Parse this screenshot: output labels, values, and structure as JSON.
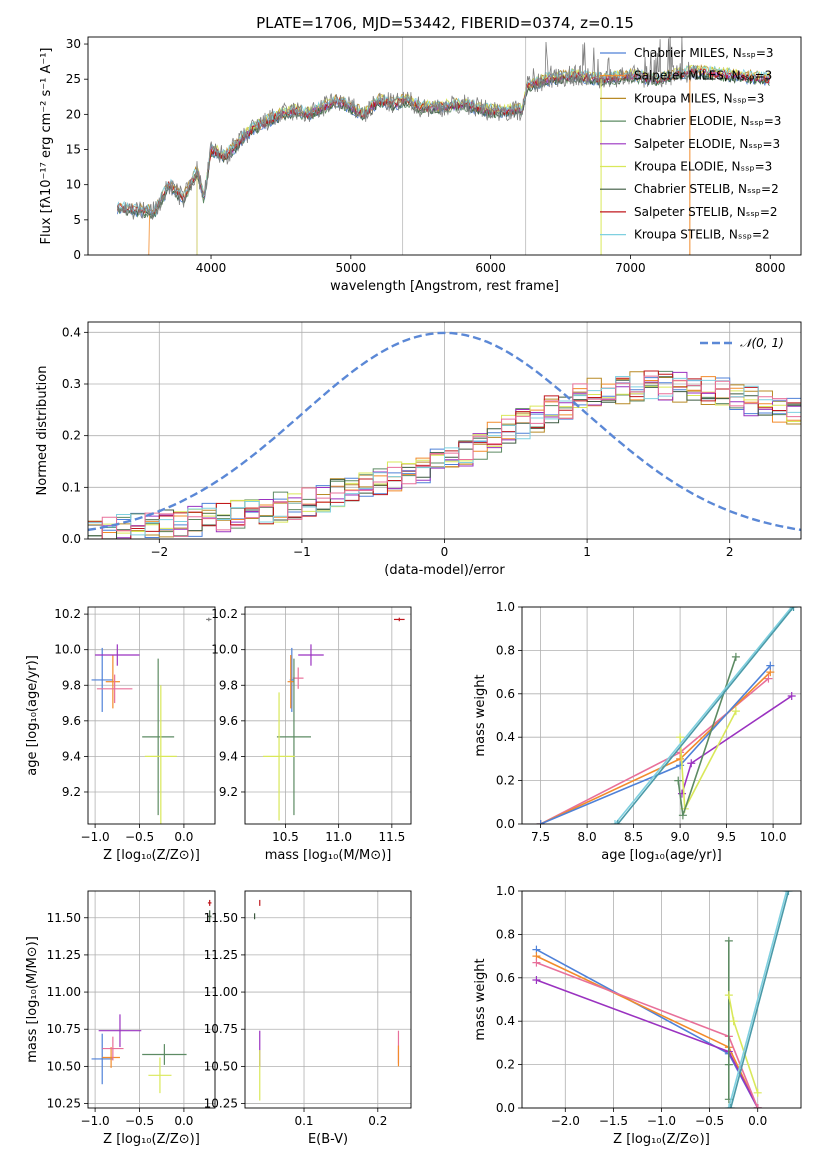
{
  "figure": {
    "suptitle": "PLATE=1706, MJD=53442, FIBERID=0374, z=0.15"
  },
  "colors": {
    "chabrier_miles": "#4f81d8",
    "salpeter_miles": "#f28b2b",
    "kroupa_miles": "#b88a26",
    "chabrier_elodie": "#5d8b63",
    "salpeter_elodie": "#9a32c0",
    "kroupa_elodie": "#d9e85a",
    "chabrier_stelib": "#3d5a40",
    "salpeter_stelib": "#c0181e",
    "kroupa_stelib": "#7fd0e0",
    "data": "#808080",
    "normal": "#5b88d6",
    "pink": "#e8709a"
  },
  "chart_data": [
    {
      "id": "spectrum",
      "type": "line",
      "xlabel": "wavelength [Angstrom, rest frame]",
      "ylabel": "Flux [fλ10⁻¹⁷ erg cm⁻² s⁻¹ A⁻¹]",
      "xlim": [
        3120,
        8220
      ],
      "ylim": [
        0,
        31
      ],
      "xticks": [
        4000,
        5000,
        6000,
        7000,
        8000
      ],
      "yticks": [
        0,
        5,
        10,
        15,
        20,
        25,
        30
      ],
      "legend": [
        {
          "label": "Chabrier MILES, Nₛₛₚ=3",
          "color": "#4f81d8"
        },
        {
          "label": "Salpeter MILES, Nₛₛₚ=3",
          "color": "#f28b2b"
        },
        {
          "label": "Kroupa MILES, Nₛₛₚ=3",
          "color": "#b88a26"
        },
        {
          "label": "Chabrier ELODIE, Nₛₛₚ=3",
          "color": "#5d8b63"
        },
        {
          "label": "Salpeter ELODIE, Nₛₛₚ=3",
          "color": "#9a32c0"
        },
        {
          "label": "Kroupa ELODIE, Nₛₛₚ=3",
          "color": "#d9e85a"
        },
        {
          "label": "Chabrier STELIB, Nₛₛₚ=2",
          "color": "#3d5a40"
        },
        {
          "label": "Salpeter STELIB, Nₛₛₚ=2",
          "color": "#c0181e"
        },
        {
          "label": "Kroupa STELIB, Nₛₛₚ=2",
          "color": "#7fd0e0"
        }
      ],
      "continuum": [
        [
          3330,
          6.8
        ],
        [
          3450,
          6.4
        ],
        [
          3600,
          6.2
        ],
        [
          3700,
          10
        ],
        [
          3800,
          8
        ],
        [
          3900,
          12
        ],
        [
          3950,
          8
        ],
        [
          4000,
          15
        ],
        [
          4100,
          14
        ],
        [
          4200,
          16
        ],
        [
          4300,
          18
        ],
        [
          4400,
          19
        ],
        [
          4500,
          20
        ],
        [
          4600,
          20.5
        ],
        [
          4700,
          20
        ],
        [
          4800,
          21
        ],
        [
          4900,
          22
        ],
        [
          5000,
          21
        ],
        [
          5100,
          20
        ],
        [
          5200,
          22
        ],
        [
          5300,
          21.5
        ],
        [
          5400,
          22
        ],
        [
          5500,
          21
        ],
        [
          5600,
          21
        ],
        [
          5700,
          21.2
        ],
        [
          5800,
          21.5
        ],
        [
          5900,
          21
        ],
        [
          6000,
          20.5
        ],
        [
          6100,
          20.5
        ],
        [
          6230,
          20.6
        ],
        [
          6260,
          24
        ],
        [
          6400,
          25
        ],
        [
          6600,
          25.5
        ],
        [
          6800,
          25
        ],
        [
          7000,
          25.5
        ],
        [
          7200,
          25
        ],
        [
          7400,
          26
        ],
        [
          7500,
          26
        ]
      ],
      "data_peaks": [
        [
          6300,
          26
        ],
        [
          6420,
          31
        ],
        [
          6600,
          31
        ],
        [
          6700,
          30
        ],
        [
          7020,
          31
        ],
        [
          7300,
          31
        ]
      ],
      "vertical_lines": [
        5370,
        6250
      ]
    },
    {
      "id": "residuals",
      "type": "line",
      "xlabel": "(data-model)/error",
      "ylabel": "Normed distribution",
      "xlim": [
        -2.5,
        2.5
      ],
      "ylim": [
        0,
        0.42
      ],
      "xticks": [
        -2,
        -1,
        0,
        1,
        2
      ],
      "yticks": [
        0.0,
        0.1,
        0.2,
        0.3,
        0.4
      ],
      "legend": [
        {
          "label": "𝒩(0, 1)",
          "color": "#5b88d6"
        }
      ],
      "bin_width": 0.1,
      "hist_envelope": [
        [
          -2.5,
          0.015
        ],
        [
          -2.0,
          0.025
        ],
        [
          -1.5,
          0.045
        ],
        [
          -1.0,
          0.07
        ],
        [
          -0.5,
          0.11
        ],
        [
          0.0,
          0.15
        ],
        [
          0.3,
          0.19
        ],
        [
          0.6,
          0.23
        ],
        [
          1.0,
          0.28
        ],
        [
          1.5,
          0.3
        ],
        [
          2.0,
          0.28
        ],
        [
          2.5,
          0.24
        ]
      ]
    },
    {
      "id": "age_vs_Z",
      "type": "scatter",
      "xlabel": "Z [log₁₀(Z/Z⊙)]",
      "ylabel": "age  [log₁₀(age/yr)]",
      "xlim": [
        -1.08,
        0.35
      ],
      "ylim": [
        9.02,
        10.24
      ],
      "xticks": [
        -1.0,
        -0.5,
        0.0
      ],
      "yticks": [
        9.2,
        9.4,
        9.6,
        9.8,
        10.0,
        10.2
      ],
      "points": [
        {
          "x": -0.92,
          "y": 9.83,
          "xerr": 0.12,
          "yerr": 0.18,
          "color": "#4f81d8"
        },
        {
          "x": -0.8,
          "y": 9.82,
          "xerr": 0.08,
          "yerr": 0.15,
          "color": "#f28b2b"
        },
        {
          "x": -0.75,
          "y": 9.97,
          "xerr": 0.25,
          "yerr": 0.06,
          "color": "#9a32c0"
        },
        {
          "x": -0.78,
          "y": 9.78,
          "xerr": 0.2,
          "yerr": 0.08,
          "color": "#e8709a"
        },
        {
          "x": -0.29,
          "y": 9.51,
          "xerr": 0.18,
          "yerr": 0.44,
          "color": "#5d8b63"
        },
        {
          "x": -0.26,
          "y": 9.4,
          "xerr": 0.18,
          "yerr": 0.4,
          "color": "#d9e85a"
        },
        {
          "x": 0.28,
          "y": 10.17,
          "xerr": 0.03,
          "yerr": 0.01,
          "color": "#808080"
        }
      ]
    },
    {
      "id": "age_vs_mass",
      "type": "scatter",
      "xlabel": "mass [log₁₀(M/M⊙)]",
      "ylabel": "",
      "xlim": [
        10.12,
        11.68
      ],
      "ylim": [
        9.02,
        10.24
      ],
      "xticks": [
        10.5,
        11.0,
        11.5
      ],
      "yticks": [
        9.2,
        9.4,
        9.6,
        9.8,
        10.0,
        10.2
      ],
      "points": [
        {
          "x": 10.56,
          "y": 9.83,
          "xerr": 0.02,
          "yerr": 0.18,
          "color": "#4f81d8"
        },
        {
          "x": 10.55,
          "y": 9.82,
          "xerr": 0.03,
          "yerr": 0.15,
          "color": "#f28b2b"
        },
        {
          "x": 10.74,
          "y": 9.97,
          "xerr": 0.12,
          "yerr": 0.06,
          "color": "#9a32c0"
        },
        {
          "x": 10.62,
          "y": 9.84,
          "xerr": 0.05,
          "yerr": 0.06,
          "color": "#e8709a"
        },
        {
          "x": 10.58,
          "y": 9.51,
          "xerr": 0.16,
          "yerr": 0.44,
          "color": "#5d8b63"
        },
        {
          "x": 10.44,
          "y": 9.4,
          "xerr": 0.15,
          "yerr": 0.36,
          "color": "#d9e85a"
        },
        {
          "x": 11.57,
          "y": 10.17,
          "xerr": 0.05,
          "yerr": 0.01,
          "color": "#c0181e"
        }
      ]
    },
    {
      "id": "weight_vs_age",
      "type": "line",
      "xlabel": "age  [log₁₀(age/yr)]",
      "ylabel": "mass weight",
      "xlim": [
        7.3,
        10.3
      ],
      "ylim": [
        0,
        1
      ],
      "xticks": [
        7.5,
        8.0,
        8.5,
        9.0,
        9.5,
        10.0
      ],
      "yticks": [
        0.0,
        0.2,
        0.4,
        0.6,
        0.8,
        1.0
      ],
      "series": [
        {
          "color": "#e8709a",
          "x": [
            7.5,
            9.0,
            9.95
          ],
          "y": [
            0.0,
            0.33,
            0.67
          ]
        },
        {
          "color": "#f28b2b",
          "x": [
            7.5,
            9.0,
            9.97
          ],
          "y": [
            0.0,
            0.3,
            0.7
          ]
        },
        {
          "color": "#4f81d8",
          "x": [
            7.5,
            9.0,
            9.97
          ],
          "y": [
            0.0,
            0.27,
            0.73
          ]
        },
        {
          "color": "#9a32c0",
          "x": [
            9.02,
            9.12,
            10.2
          ],
          "y": [
            0.14,
            0.28,
            0.59
          ]
        },
        {
          "color": "#d9e85a",
          "x": [
            9.0,
            9.05,
            9.6
          ],
          "y": [
            0.4,
            0.07,
            0.52
          ]
        },
        {
          "color": "#5d8b63",
          "x": [
            8.98,
            9.03,
            9.6
          ],
          "y": [
            0.2,
            0.04,
            0.77
          ]
        },
        {
          "color": "#7fd0e0",
          "x": [
            8.3,
            10.2
          ],
          "y": [
            0.0,
            1.0
          ]
        },
        {
          "color": "#4a9aa8",
          "x": [
            8.33,
            10.22
          ],
          "y": [
            0.0,
            1.0
          ]
        }
      ]
    },
    {
      "id": "mass_vs_Z",
      "type": "scatter",
      "xlabel": "Z [log₁₀(Z/Z⊙)]",
      "ylabel": "mass [log₁₀(M/M⊙)]",
      "xlim": [
        -1.08,
        0.35
      ],
      "ylim": [
        10.22,
        11.68
      ],
      "xticks": [
        -1.0,
        -0.5,
        0.0
      ],
      "yticks": [
        10.25,
        10.5,
        10.75,
        11.0,
        11.25,
        11.5
      ],
      "points": [
        {
          "x": -0.92,
          "y": 10.55,
          "xerr": 0.12,
          "yerr": 0.17,
          "color": "#4f81d8"
        },
        {
          "x": -0.82,
          "y": 10.56,
          "xerr": 0.1,
          "yerr": 0.07,
          "color": "#f28b2b"
        },
        {
          "x": -0.72,
          "y": 10.74,
          "xerr": 0.24,
          "yerr": 0.11,
          "color": "#9a32c0"
        },
        {
          "x": -0.8,
          "y": 10.62,
          "xerr": 0.12,
          "yerr": 0.08,
          "color": "#e8709a"
        },
        {
          "x": -0.22,
          "y": 10.58,
          "xerr": 0.25,
          "yerr": 0.07,
          "color": "#5d8b63"
        },
        {
          "x": -0.27,
          "y": 10.44,
          "xerr": 0.13,
          "yerr": 0.12,
          "color": "#d9e85a"
        },
        {
          "x": 0.29,
          "y": 11.6,
          "xerr": 0.02,
          "yerr": 0.02,
          "color": "#c0181e"
        },
        {
          "x": 0.29,
          "y": 11.51,
          "xerr": 0.02,
          "yerr": 0.04,
          "color": "#3d5a40"
        }
      ]
    },
    {
      "id": "mass_vs_ebv",
      "type": "scatter",
      "xlabel": "E(B-V)",
      "ylabel": "",
      "xlim": [
        0.02,
        0.245
      ],
      "ylim": [
        10.22,
        11.68
      ],
      "xticks": [
        0.1,
        0.2
      ],
      "yticks": [
        10.25,
        10.5,
        10.75,
        11.0,
        11.25,
        11.5
      ],
      "points": [
        {
          "x": 0.04,
          "y": 10.62,
          "xerr": 0,
          "yerr": 0.12,
          "color": "#9a32c0"
        },
        {
          "x": 0.04,
          "y": 10.44,
          "xerr": 0,
          "yerr": 0.17,
          "color": "#d9e85a"
        },
        {
          "x": 0.228,
          "y": 10.63,
          "xerr": 0,
          "yerr": 0.11,
          "color": "#e8709a"
        },
        {
          "x": 0.228,
          "y": 10.57,
          "xerr": 0,
          "yerr": 0.07,
          "color": "#f28b2b"
        },
        {
          "x": 0.04,
          "y": 11.6,
          "xerr": 0,
          "yerr": 0.02,
          "color": "#c0181e"
        },
        {
          "x": 0.033,
          "y": 11.51,
          "xerr": 0,
          "yerr": 0.02,
          "color": "#3d5a40"
        }
      ]
    },
    {
      "id": "weight_vs_Z",
      "type": "line",
      "xlabel": "Z [log₁₀(Z/Z⊙)]",
      "ylabel": "mass weight",
      "xlim": [
        -2.45,
        0.45
      ],
      "ylim": [
        0,
        1
      ],
      "xticks": [
        -2.0,
        -1.5,
        -1.0,
        -0.5,
        0.0
      ],
      "yticks": [
        0.0,
        0.2,
        0.4,
        0.6,
        0.8,
        1.0
      ],
      "series": [
        {
          "color": "#4f81d8",
          "x": [
            -2.3,
            -0.3,
            0.0
          ],
          "y": [
            0.73,
            0.25,
            0.0
          ]
        },
        {
          "color": "#f28b2b",
          "x": [
            -2.3,
            -0.3,
            0.0
          ],
          "y": [
            0.7,
            0.28,
            0.0
          ]
        },
        {
          "color": "#9a32c0",
          "x": [
            -2.3,
            -0.3,
            0.0
          ],
          "y": [
            0.59,
            0.26,
            0.0
          ]
        },
        {
          "color": "#e8709a",
          "x": [
            -2.3,
            -0.3,
            0.0
          ],
          "y": [
            0.67,
            0.33,
            0.0
          ]
        },
        {
          "color": "#5d8b63",
          "x": [
            -0.3,
            -0.3,
            -0.3
          ],
          "y": [
            0.77,
            0.04,
            0.2
          ]
        },
        {
          "color": "#d9e85a",
          "x": [
            -0.3,
            -0.25,
            0.0
          ],
          "y": [
            0.52,
            0.4,
            0.07
          ]
        },
        {
          "color": "#7fd0e0",
          "x": [
            -0.3,
            0.3
          ],
          "y": [
            0.0,
            1.0
          ]
        },
        {
          "color": "#4a9aa8",
          "x": [
            -0.28,
            0.32
          ],
          "y": [
            0.0,
            1.0
          ]
        }
      ]
    }
  ]
}
